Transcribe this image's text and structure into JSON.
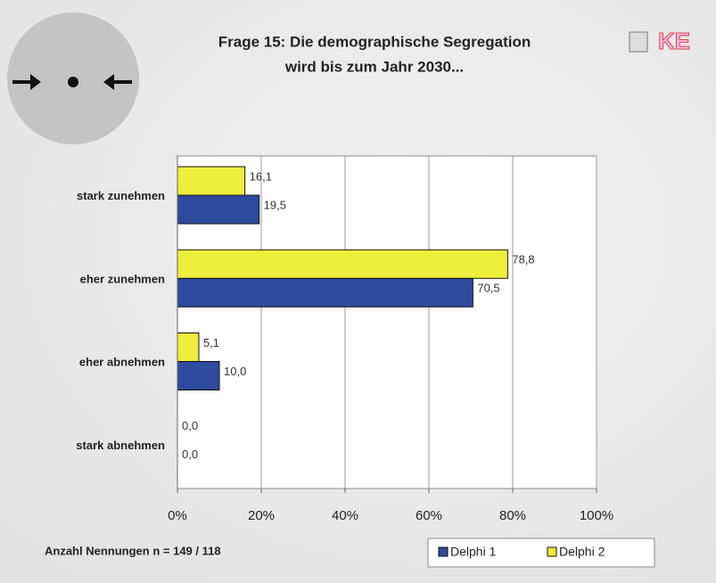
{
  "chart_data": {
    "type": "bar",
    "orientation": "horizontal",
    "title": [
      "Frage 15: Die demographische Segregation",
      "wird bis zum Jahr 2030..."
    ],
    "logo": "KE",
    "categories": [
      "stark zunehmen",
      "eher zunehmen",
      "eher abnehmen",
      "stark abnehmen"
    ],
    "series": [
      {
        "name": "Delphi 1",
        "color": "#2e4a9e",
        "values": [
          19.5,
          70.5,
          10.0,
          0.0
        ],
        "value_labels": [
          "19,5",
          "70,5",
          "10,0",
          "0,0"
        ]
      },
      {
        "name": "Delphi 2",
        "color": "#eeee3c",
        "values": [
          16.1,
          78.8,
          5.1,
          0.0
        ],
        "value_labels": [
          "16,1",
          "78,8",
          "5,1",
          "0,0"
        ]
      }
    ],
    "xlim": [
      0,
      100
    ],
    "xticks": [
      {
        "value": 0,
        "label": "0%"
      },
      {
        "value": 20,
        "label": "20%"
      },
      {
        "value": 40,
        "label": "40%"
      },
      {
        "value": 60,
        "label": "60%"
      },
      {
        "value": 80,
        "label": "80%"
      },
      {
        "value": 100,
        "label": "100%"
      }
    ],
    "grid": true,
    "legend": "bottom-right",
    "footnote": "Anzahl Nennungen n = 149 / 118"
  }
}
